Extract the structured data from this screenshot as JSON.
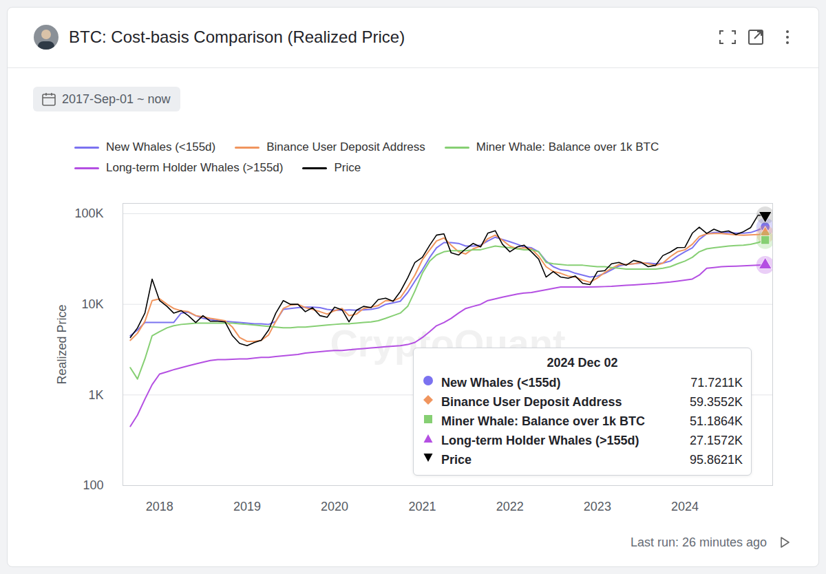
{
  "chart_data": {
    "type": "line",
    "title": "BTC: Cost-basis Comparison (Realized Price)",
    "subtitle": "2017-Sep-01 ~ now",
    "caption": "Last run: 26 minutes ago",
    "watermark": "CryptoQuant",
    "ylabel": "Realized Price",
    "log": "y",
    "grid": true,
    "legend": "top",
    "x": [
      "2017-09",
      "2017-10",
      "2017-11",
      "2017-12",
      "2018-01",
      "2018-02",
      "2018-03",
      "2018-04",
      "2018-05",
      "2018-06",
      "2018-07",
      "2018-08",
      "2018-09",
      "2018-10",
      "2018-11",
      "2018-12",
      "2019-01",
      "2019-02",
      "2019-03",
      "2019-04",
      "2019-05",
      "2019-06",
      "2019-07",
      "2019-08",
      "2019-09",
      "2019-10",
      "2019-11",
      "2019-12",
      "2020-01",
      "2020-02",
      "2020-03",
      "2020-04",
      "2020-05",
      "2020-06",
      "2020-07",
      "2020-08",
      "2020-09",
      "2020-10",
      "2020-11",
      "2020-12",
      "2021-01",
      "2021-02",
      "2021-03",
      "2021-04",
      "2021-05",
      "2021-06",
      "2021-07",
      "2021-08",
      "2021-09",
      "2021-10",
      "2021-11",
      "2021-12",
      "2022-01",
      "2022-02",
      "2022-03",
      "2022-04",
      "2022-05",
      "2022-06",
      "2022-07",
      "2022-08",
      "2022-09",
      "2022-10",
      "2022-11",
      "2022-12",
      "2023-01",
      "2023-02",
      "2023-03",
      "2023-04",
      "2023-05",
      "2023-06",
      "2023-07",
      "2023-08",
      "2023-09",
      "2023-10",
      "2023-11",
      "2023-12",
      "2024-01",
      "2024-02",
      "2024-03",
      "2024-04",
      "2024-05",
      "2024-06",
      "2024-07",
      "2024-08",
      "2024-09",
      "2024-10",
      "2024-11",
      "2024-12"
    ],
    "xlim": [
      "2017-08",
      "2025-01"
    ],
    "xticks": [
      {
        "value": "2018-01",
        "label": "2018"
      },
      {
        "value": "2019-01",
        "label": "2019"
      },
      {
        "value": "2020-01",
        "label": "2020"
      },
      {
        "value": "2021-01",
        "label": "2021"
      },
      {
        "value": "2022-01",
        "label": "2022"
      },
      {
        "value": "2023-01",
        "label": "2023"
      },
      {
        "value": "2024-01",
        "label": "2024"
      }
    ],
    "ylim": [
      100,
      130000
    ],
    "yticks": [
      100,
      {
        "value": 1000,
        "label": "1K"
      },
      {
        "value": 10000,
        "label": "10K"
      },
      {
        "value": 100000,
        "label": "100K"
      }
    ],
    "series": [
      {
        "name": "New Whales (<155d)",
        "color": "#7b72f0",
        "marker": "circle",
        "values": [
          4500,
          5200,
          6300,
          6300,
          6300,
          6300,
          6300,
          8000,
          8200,
          7500,
          7000,
          6800,
          6600,
          6500,
          6400,
          6300,
          6200,
          6100,
          6100,
          6000,
          6500,
          8800,
          9000,
          9200,
          9300,
          9300,
          9200,
          8800,
          8600,
          8600,
          8700,
          8600,
          8700,
          8800,
          9100,
          10000,
          10400,
          10800,
          13500,
          18000,
          24000,
          33000,
          42000,
          48000,
          48000,
          47000,
          44000,
          44000,
          45000,
          50000,
          55000,
          52000,
          49000,
          46000,
          43000,
          42000,
          38000,
          30000,
          26000,
          24000,
          23500,
          22000,
          21000,
          20000,
          20500,
          22000,
          24000,
          26500,
          27500,
          28000,
          28500,
          28500,
          28000,
          28500,
          30000,
          34000,
          38000,
          42000,
          52000,
          60000,
          62000,
          62500,
          62000,
          61000,
          61000,
          62000,
          66000,
          71721.1
        ]
      },
      {
        "name": "Binance User Deposit Address",
        "color": "#f0955e",
        "marker": "diamond",
        "values": [
          4000,
          4800,
          6500,
          11000,
          11500,
          10000,
          9000,
          8500,
          8300,
          7500,
          7300,
          7000,
          6800,
          6600,
          5600,
          4300,
          3900,
          3900,
          4000,
          4600,
          6500,
          9000,
          9800,
          10000,
          9200,
          8800,
          8300,
          7800,
          8500,
          9000,
          7500,
          7800,
          9000,
          9300,
          9700,
          11000,
          10900,
          11800,
          15500,
          21000,
          31000,
          40000,
          50000,
          54000,
          45000,
          38000,
          36000,
          41000,
          44000,
          53000,
          58000,
          51000,
          44000,
          41000,
          42000,
          41000,
          34000,
          26000,
          23000,
          22000,
          20500,
          20000,
          18500,
          17500,
          19500,
          22500,
          25000,
          27500,
          27500,
          28000,
          29000,
          28000,
          26800,
          28500,
          33500,
          38000,
          40000,
          46000,
          56000,
          60000,
          60500,
          60500,
          59500,
          58500,
          58000,
          58500,
          59000,
          59355.2
        ]
      },
      {
        "name": "Miner Whale: Balance over 1k BTC",
        "color": "#86cf73",
        "marker": "square",
        "values": [
          2000,
          1500,
          2500,
          4500,
          5000,
          5500,
          5800,
          6000,
          6100,
          6200,
          6200,
          6200,
          6200,
          6200,
          6200,
          6100,
          6000,
          5900,
          5800,
          5700,
          5600,
          5500,
          5500,
          5600,
          5600,
          5700,
          5800,
          5900,
          6000,
          6100,
          6100,
          6200,
          6300,
          6400,
          6600,
          7000,
          7500,
          8000,
          9500,
          14000,
          22000,
          30000,
          35000,
          38000,
          39000,
          39000,
          39000,
          40000,
          40000,
          42000,
          44000,
          43000,
          42000,
          41000,
          40000,
          40000,
          38000,
          29000,
          28000,
          27500,
          27000,
          27000,
          27000,
          26500,
          26000,
          26000,
          25500,
          25000,
          24500,
          24500,
          24500,
          24500,
          24500,
          25000,
          26000,
          28000,
          30000,
          33000,
          38000,
          41000,
          42000,
          43000,
          44000,
          44500,
          45000,
          46000,
          48000,
          51186.4
        ]
      },
      {
        "name": "Long-term Holder Whales (>155d)",
        "color": "#b44fe2",
        "marker": "triangle",
        "values": [
          450,
          600,
          900,
          1300,
          1700,
          1800,
          1900,
          2000,
          2100,
          2200,
          2300,
          2400,
          2450,
          2450,
          2480,
          2500,
          2500,
          2550,
          2600,
          2600,
          2650,
          2700,
          2750,
          2800,
          2900,
          2950,
          3000,
          3050,
          3100,
          3100,
          3150,
          3200,
          3250,
          3300,
          3350,
          3400,
          3450,
          3500,
          3600,
          3800,
          4300,
          5000,
          5800,
          6300,
          7000,
          8000,
          9000,
          9500,
          10000,
          11000,
          11500,
          12000,
          12500,
          13000,
          13300,
          13500,
          14000,
          14500,
          15000,
          15500,
          15500,
          15500,
          15500,
          15500,
          15600,
          15700,
          15800,
          16000,
          16200,
          16400,
          16600,
          16800,
          17000,
          17300,
          17600,
          18000,
          18500,
          19000,
          21000,
          25000,
          25500,
          26000,
          26200,
          26400,
          26600,
          26800,
          27000,
          27157.2
        ]
      },
      {
        "name": "Price",
        "color": "#000000",
        "marker": "triangle-down",
        "values": [
          4300,
          5500,
          8000,
          19000,
          11000,
          9500,
          8000,
          8500,
          7500,
          6300,
          7500,
          6500,
          6500,
          6400,
          4500,
          3700,
          3500,
          3800,
          4000,
          5200,
          8000,
          11000,
          10000,
          10000,
          8300,
          9200,
          7500,
          7200,
          9300,
          8700,
          6400,
          8600,
          9500,
          9200,
          11300,
          11700,
          10800,
          13800,
          19600,
          29000,
          33000,
          45000,
          58000,
          60000,
          37000,
          35000,
          41000,
          47000,
          43000,
          61000,
          65000,
          46000,
          38000,
          43000,
          45000,
          38000,
          31500,
          20000,
          23000,
          20000,
          19400,
          20500,
          17000,
          16500,
          23000,
          23500,
          28000,
          29000,
          27000,
          30500,
          29200,
          26000,
          27000,
          34500,
          37700,
          42300,
          42500,
          61000,
          71000,
          60600,
          67500,
          62700,
          64600,
          59000,
          63300,
          70200,
          96400,
          95862.1
        ]
      }
    ],
    "tooltip": {
      "title": "2024 Dec 02",
      "value_labels": [
        "71.7211K",
        "59.3552K",
        "51.1864K",
        "27.1572K",
        "95.8621K"
      ]
    }
  }
}
